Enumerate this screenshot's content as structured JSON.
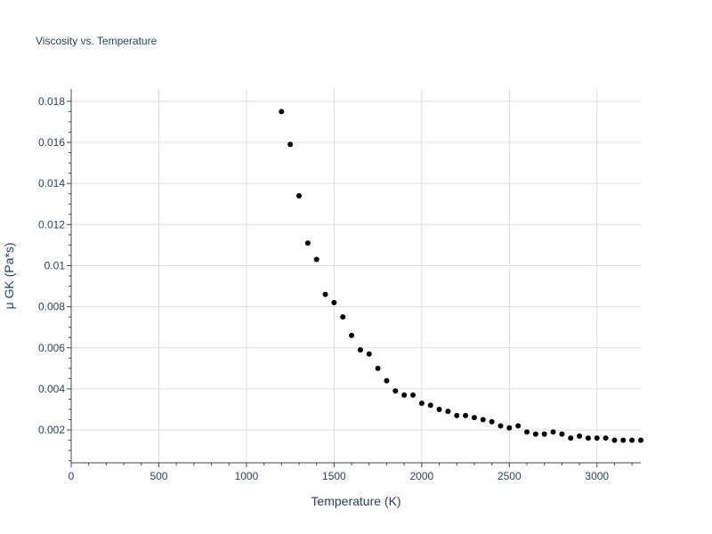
{
  "chart_data": {
    "type": "scatter",
    "title": "Viscosity vs. Temperature",
    "xlabel": "Temperature (K)",
    "ylabel": "μ GK (Pa*s)",
    "xlim": [
      0,
      3250
    ],
    "ylim": [
      0.0004,
      0.0186
    ],
    "x_ticks": [
      0,
      500,
      1000,
      1500,
      2000,
      2500,
      3000
    ],
    "x_tick_labels": [
      "0",
      "500",
      "1000",
      "1500",
      "2000",
      "2500",
      "3000"
    ],
    "y_ticks": [
      0.002,
      0.004,
      0.006,
      0.008,
      0.01,
      0.012,
      0.014,
      0.016,
      0.018
    ],
    "y_tick_labels": [
      "0.002",
      "0.004",
      "0.006",
      "0.008",
      "0.01",
      "0.012",
      "0.014",
      "0.016",
      "0.018"
    ],
    "grid": true,
    "marker_color": "#000000",
    "series": [
      {
        "x": [
          1200,
          1250,
          1300,
          1350,
          1400,
          1450,
          1500,
          1550,
          1600,
          1650,
          1700,
          1750,
          1800,
          1850,
          1900,
          1950,
          2000,
          2050,
          2100,
          2150,
          2200,
          2250,
          2300,
          2350,
          2400,
          2450,
          2500,
          2550,
          2600,
          2650,
          2700,
          2750,
          2800,
          2850,
          2900,
          2950,
          3000,
          3050,
          3100,
          3150,
          3200,
          3250
        ],
        "y": [
          0.0175,
          0.0159,
          0.0134,
          0.0111,
          0.0103,
          0.0086,
          0.0082,
          0.0075,
          0.0066,
          0.0059,
          0.0057,
          0.005,
          0.0044,
          0.0039,
          0.0037,
          0.0037,
          0.0033,
          0.0032,
          0.003,
          0.0029,
          0.0027,
          0.0027,
          0.0026,
          0.0025,
          0.0024,
          0.0022,
          0.0021,
          0.0022,
          0.0019,
          0.0018,
          0.0018,
          0.0019,
          0.0018,
          0.0016,
          0.0017,
          0.0016,
          0.0016,
          0.0016,
          0.0015,
          0.0015,
          0.0015,
          0.0015
        ]
      }
    ]
  }
}
